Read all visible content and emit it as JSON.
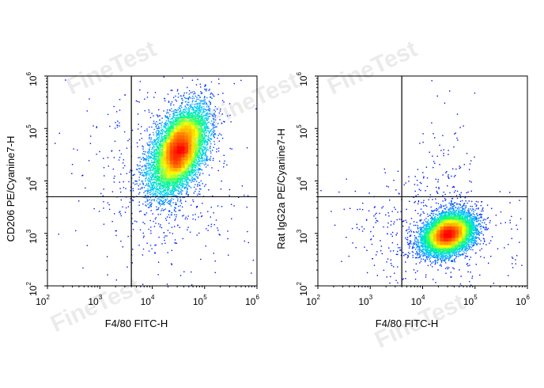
{
  "watermark": "FineTest",
  "chart_data": [
    {
      "type": "scatter",
      "subtype": "flow-cytometry-density",
      "xlabel": "F4/80 FITC-H",
      "ylabel": "CD206 PE/Cyanine7-H",
      "xscale": "log",
      "yscale": "log",
      "xlim": [
        100,
        1000000
      ],
      "ylim": [
        100,
        1000000
      ],
      "x_tick_labels": [
        "10",
        "10",
        "10",
        "10",
        "10"
      ],
      "x_tick_exponents": [
        "2",
        "3",
        "4",
        "5",
        "6"
      ],
      "y_tick_labels": [
        "10",
        "10",
        "10",
        "10",
        "10"
      ],
      "y_tick_exponents": [
        "2",
        "3",
        "4",
        "5",
        "6"
      ],
      "gate": {
        "x": 4000,
        "y": 5000
      },
      "population": {
        "center_x": 32000,
        "center_y": 40000,
        "approx_points": 9000
      },
      "color_scale": [
        "#0000ff",
        "#00c8ff",
        "#00ff80",
        "#ffff00",
        "#ff8000",
        "#ff0000"
      ]
    },
    {
      "type": "scatter",
      "subtype": "flow-cytometry-density",
      "xlabel": "F4/80  FITC-H",
      "ylabel": "Rat IgG2a PE/Cyanine7-H",
      "xscale": "log",
      "yscale": "log",
      "xlim": [
        100,
        1000000
      ],
      "ylim": [
        100,
        1000000
      ],
      "x_tick_labels": [
        "10",
        "10",
        "10",
        "10",
        "10"
      ],
      "x_tick_exponents": [
        "2",
        "3",
        "4",
        "5",
        "6"
      ],
      "y_tick_labels": [
        "10",
        "10",
        "10",
        "10",
        "10"
      ],
      "y_tick_exponents": [
        "2",
        "3",
        "4",
        "5",
        "6"
      ],
      "gate": {
        "x": 4000,
        "y": 5000
      },
      "population": {
        "center_x": 30000,
        "center_y": 1000,
        "approx_points": 9000
      },
      "color_scale": [
        "#0000ff",
        "#00c8ff",
        "#00ff80",
        "#ffff00",
        "#ff8000",
        "#ff0000"
      ]
    }
  ]
}
